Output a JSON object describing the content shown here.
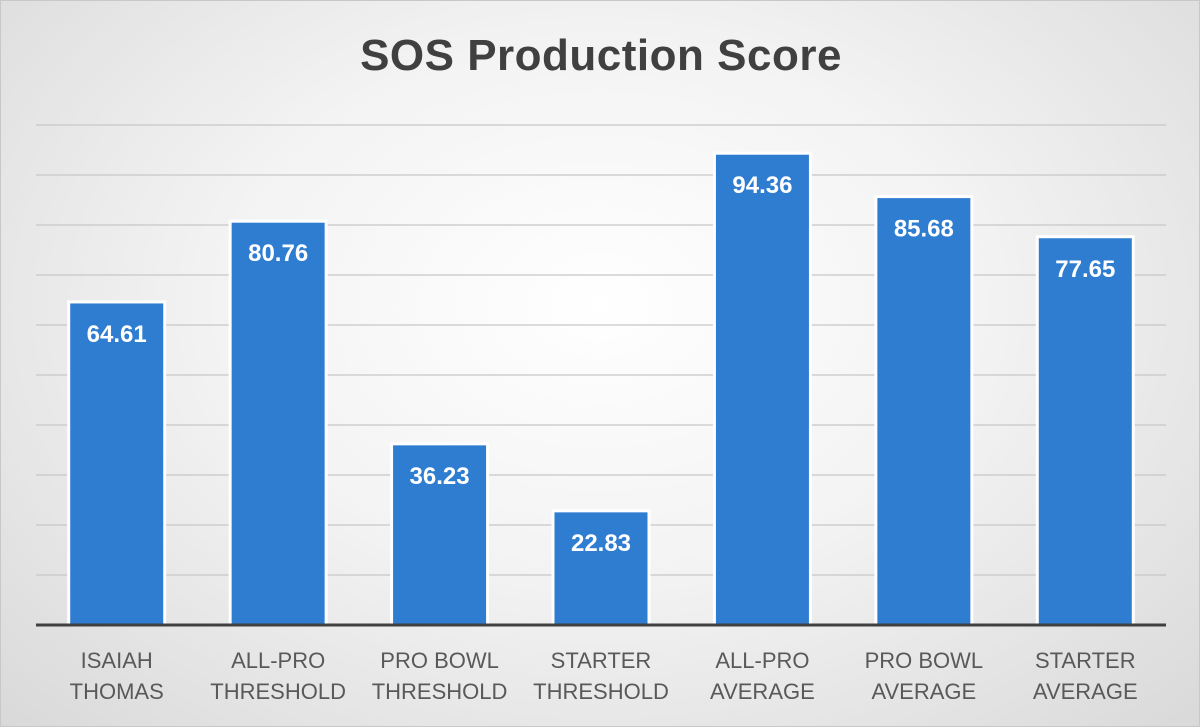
{
  "chart_data": {
    "type": "bar",
    "title": "SOS Production Score",
    "categories": [
      [
        "ISAIAH",
        "THOMAS"
      ],
      [
        "ALL-PRO",
        "THRESHOLD"
      ],
      [
        "PRO BOWL",
        "THRESHOLD"
      ],
      [
        "STARTER",
        "THRESHOLD"
      ],
      [
        "ALL-PRO",
        "AVERAGE"
      ],
      [
        "PRO BOWL",
        "AVERAGE"
      ],
      [
        "STARTER",
        "AVERAGE"
      ]
    ],
    "values": [
      64.61,
      80.76,
      36.23,
      22.83,
      94.36,
      85.68,
      77.65
    ],
    "value_labels": [
      "64.61",
      "80.76",
      "36.23",
      "22.83",
      "94.36",
      "85.68",
      "77.65"
    ],
    "ylim": [
      0,
      100
    ],
    "grid": true,
    "legend": "none",
    "colors": {
      "bar": "#2f7dd1",
      "label": "#ffffff",
      "title": "#404040",
      "axis_text": "#595959"
    }
  }
}
